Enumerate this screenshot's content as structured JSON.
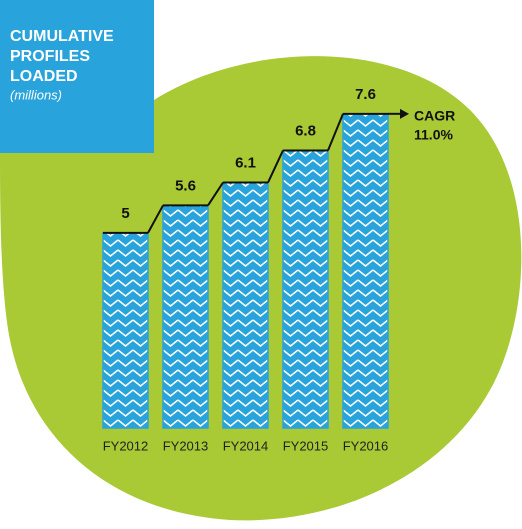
{
  "chart_data": {
    "type": "bar",
    "title": [
      "CUMULATIVE",
      "PROFILES",
      "LOADED"
    ],
    "subtitle": "(millions)",
    "categories": [
      "FY2012",
      "FY2013",
      "FY2014",
      "FY2015",
      "FY2016"
    ],
    "values": [
      5,
      5.6,
      6.1,
      6.8,
      7.6
    ],
    "color": "#29a3dc",
    "ylim": [
      0.74,
      8
    ],
    "annotation": [
      "CAGR",
      "11.0%"
    ]
  }
}
